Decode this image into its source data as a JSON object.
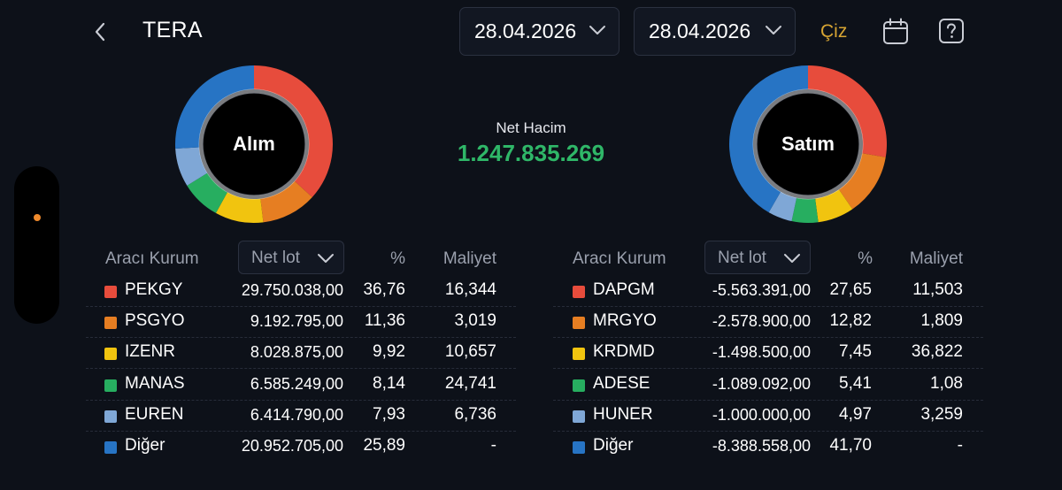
{
  "header": {
    "title": "TERA",
    "start_date": "28.04.2026",
    "end_date": "28.04.2026",
    "draw_label": "Çiz"
  },
  "icons": [
    "chevron-left-icon",
    "chevron-down-icon",
    "calendar-icon",
    "help-icon"
  ],
  "summary": {
    "buy_label": "Alım",
    "sell_label": "Satım",
    "net_volume_label": "Net Hacim",
    "net_volume_value": "1.247.835.269"
  },
  "colors": {
    "background": "#0d1119",
    "positive": "#2fb768",
    "accent": "#d7a533",
    "red": "#e74c3c",
    "orange": "#e67e22",
    "yellow": "#f1c40f",
    "green": "#27ae60",
    "light_blue": "#7fa7d6",
    "blue": "#2774c4"
  },
  "table_headers": {
    "broker": "Aracı Kurum",
    "lot_select": "Net lot",
    "percent": "%",
    "cost": "Maliyet"
  },
  "buy_rows": [
    {
      "name": "PEKGY",
      "lot": "29.750.038,00",
      "pct": "36,76",
      "cost": "16,344",
      "color": "#e74c3c"
    },
    {
      "name": "PSGYO",
      "lot": "9.192.795,00",
      "pct": "11,36",
      "cost": "3,019",
      "color": "#e67e22"
    },
    {
      "name": "IZENR",
      "lot": "8.028.875,00",
      "pct": "9,92",
      "cost": "10,657",
      "color": "#f1c40f"
    },
    {
      "name": "MANAS",
      "lot": "6.585.249,00",
      "pct": "8,14",
      "cost": "24,741",
      "color": "#27ae60"
    },
    {
      "name": "EUREN",
      "lot": "6.414.790,00",
      "pct": "7,93",
      "cost": "6,736",
      "color": "#7fa7d6"
    },
    {
      "name": "Diğer",
      "lot": "20.952.705,00",
      "pct": "25,89",
      "cost": "-",
      "color": "#2774c4"
    }
  ],
  "sell_rows": [
    {
      "name": "DAPGM",
      "lot": "-5.563.391,00",
      "pct": "27,65",
      "cost": "11,503",
      "color": "#e74c3c"
    },
    {
      "name": "MRGYO",
      "lot": "-2.578.900,00",
      "pct": "12,82",
      "cost": "1,809",
      "color": "#e67e22"
    },
    {
      "name": "KRDMD",
      "lot": "-1.498.500,00",
      "pct": "7,45",
      "cost": "36,822",
      "color": "#f1c40f"
    },
    {
      "name": "ADESE",
      "lot": "-1.089.092,00",
      "pct": "5,41",
      "cost": "1,08",
      "color": "#27ae60"
    },
    {
      "name": "HUNER",
      "lot": "-1.000.000,00",
      "pct": "4,97",
      "cost": "3,259",
      "color": "#7fa7d6"
    },
    {
      "name": "Diğer",
      "lot": "-8.388.558,00",
      "pct": "41,70",
      "cost": "-",
      "color": "#2774c4"
    }
  ],
  "buy_shares": [
    36.76,
    11.36,
    9.92,
    8.14,
    7.93,
    25.89
  ],
  "sell_shares": [
    27.65,
    12.82,
    7.45,
    5.41,
    4.97,
    41.7
  ]
}
